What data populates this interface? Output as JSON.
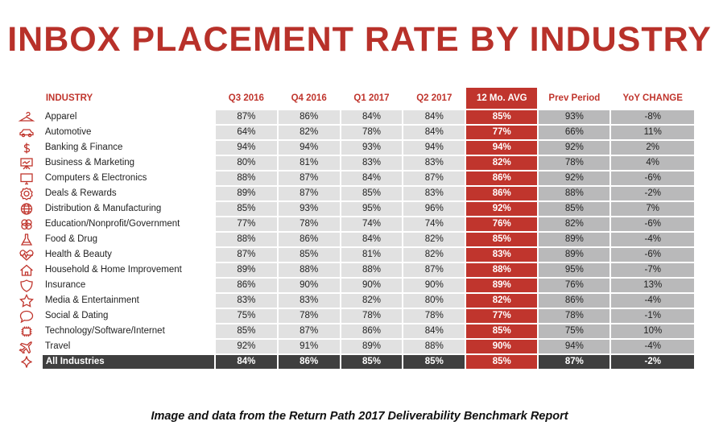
{
  "title": "INBOX PLACEMENT RATE BY INDUSTRY",
  "caption": "Image and data from the Return Path 2017 Deliverability Benchmark Report",
  "colors": {
    "accent": "#c0352d",
    "cell": "#e1e1e1",
    "prev": "#b9b9ba",
    "total": "#3f3f3f"
  },
  "headers": {
    "industry": "INDUSTRY",
    "q3_2016": "Q3 2016",
    "q4_2016": "Q4 2016",
    "q1_2017": "Q1 2017",
    "q2_2017": "Q2 2017",
    "avg": "12 Mo. AVG",
    "prev": "Prev Period",
    "yoy": "YoY CHANGE"
  },
  "rows": [
    {
      "icon": "hanger-icon",
      "industry": "Apparel",
      "q3_2016": "87%",
      "q4_2016": "86%",
      "q1_2017": "84%",
      "q2_2017": "84%",
      "avg": "85%",
      "prev": "93%",
      "yoy": "-8%"
    },
    {
      "icon": "car-icon",
      "industry": "Automotive",
      "q3_2016": "64%",
      "q4_2016": "82%",
      "q1_2017": "78%",
      "q2_2017": "84%",
      "avg": "77%",
      "prev": "66%",
      "yoy": "11%"
    },
    {
      "icon": "dollar-icon",
      "industry": "Banking & Finance",
      "q3_2016": "94%",
      "q4_2016": "94%",
      "q1_2017": "93%",
      "q2_2017": "94%",
      "avg": "94%",
      "prev": "92%",
      "yoy": "2%"
    },
    {
      "icon": "presentation-board-icon",
      "industry": "Business & Marketing",
      "q3_2016": "80%",
      "q4_2016": "81%",
      "q1_2017": "83%",
      "q2_2017": "83%",
      "avg": "82%",
      "prev": "78%",
      "yoy": "4%"
    },
    {
      "icon": "monitor-icon",
      "industry": "Computers & Electronics",
      "q3_2016": "88%",
      "q4_2016": "87%",
      "q1_2017": "84%",
      "q2_2017": "87%",
      "avg": "86%",
      "prev": "92%",
      "yoy": "-6%"
    },
    {
      "icon": "badge-icon",
      "industry": "Deals & Rewards",
      "q3_2016": "89%",
      "q4_2016": "87%",
      "q1_2017": "85%",
      "q2_2017": "83%",
      "avg": "86%",
      "prev": "88%",
      "yoy": "-2%"
    },
    {
      "icon": "globe-icon",
      "industry": "Distribution & Manufacturing",
      "q3_2016": "85%",
      "q4_2016": "93%",
      "q1_2017": "95%",
      "q2_2017": "96%",
      "avg": "92%",
      "prev": "85%",
      "yoy": "7%"
    },
    {
      "icon": "circles-icon",
      "industry": "Education/Nonprofit/Government",
      "q3_2016": "77%",
      "q4_2016": "78%",
      "q1_2017": "74%",
      "q2_2017": "74%",
      "avg": "76%",
      "prev": "82%",
      "yoy": "-6%"
    },
    {
      "icon": "flask-icon",
      "industry": "Food & Drug",
      "q3_2016": "88%",
      "q4_2016": "86%",
      "q1_2017": "84%",
      "q2_2017": "82%",
      "avg": "85%",
      "prev": "89%",
      "yoy": "-4%"
    },
    {
      "icon": "heart-pulse-icon",
      "industry": "Health & Beauty",
      "q3_2016": "87%",
      "q4_2016": "85%",
      "q1_2017": "81%",
      "q2_2017": "82%",
      "avg": "83%",
      "prev": "89%",
      "yoy": "-6%"
    },
    {
      "icon": "house-icon",
      "industry": "Household & Home Improvement",
      "q3_2016": "89%",
      "q4_2016": "88%",
      "q1_2017": "88%",
      "q2_2017": "87%",
      "avg": "88%",
      "prev": "95%",
      "yoy": "-7%"
    },
    {
      "icon": "shield-icon",
      "industry": "Insurance",
      "q3_2016": "86%",
      "q4_2016": "90%",
      "q1_2017": "90%",
      "q2_2017": "90%",
      "avg": "89%",
      "prev": "76%",
      "yoy": "13%"
    },
    {
      "icon": "star-icon",
      "industry": "Media & Entertainment",
      "q3_2016": "83%",
      "q4_2016": "83%",
      "q1_2017": "82%",
      "q2_2017": "80%",
      "avg": "82%",
      "prev": "86%",
      "yoy": "-4%"
    },
    {
      "icon": "chat-bubble-icon",
      "industry": "Social & Dating",
      "q3_2016": "75%",
      "q4_2016": "78%",
      "q1_2017": "78%",
      "q2_2017": "78%",
      "avg": "77%",
      "prev": "78%",
      "yoy": "-1%"
    },
    {
      "icon": "chip-icon",
      "industry": "Technology/Software/Internet",
      "q3_2016": "85%",
      "q4_2016": "87%",
      "q1_2017": "86%",
      "q2_2017": "84%",
      "avg": "85%",
      "prev": "75%",
      "yoy": "10%"
    },
    {
      "icon": "plane-icon",
      "industry": "Travel",
      "q3_2016": "92%",
      "q4_2016": "91%",
      "q1_2017": "89%",
      "q2_2017": "88%",
      "avg": "90%",
      "prev": "94%",
      "yoy": "-4%"
    }
  ],
  "total": {
    "icon": "sparkle-icon",
    "industry": "All Industries",
    "q3_2016": "84%",
    "q4_2016": "86%",
    "q1_2017": "85%",
    "q2_2017": "85%",
    "avg": "85%",
    "prev": "87%",
    "yoy": "-2%"
  }
}
